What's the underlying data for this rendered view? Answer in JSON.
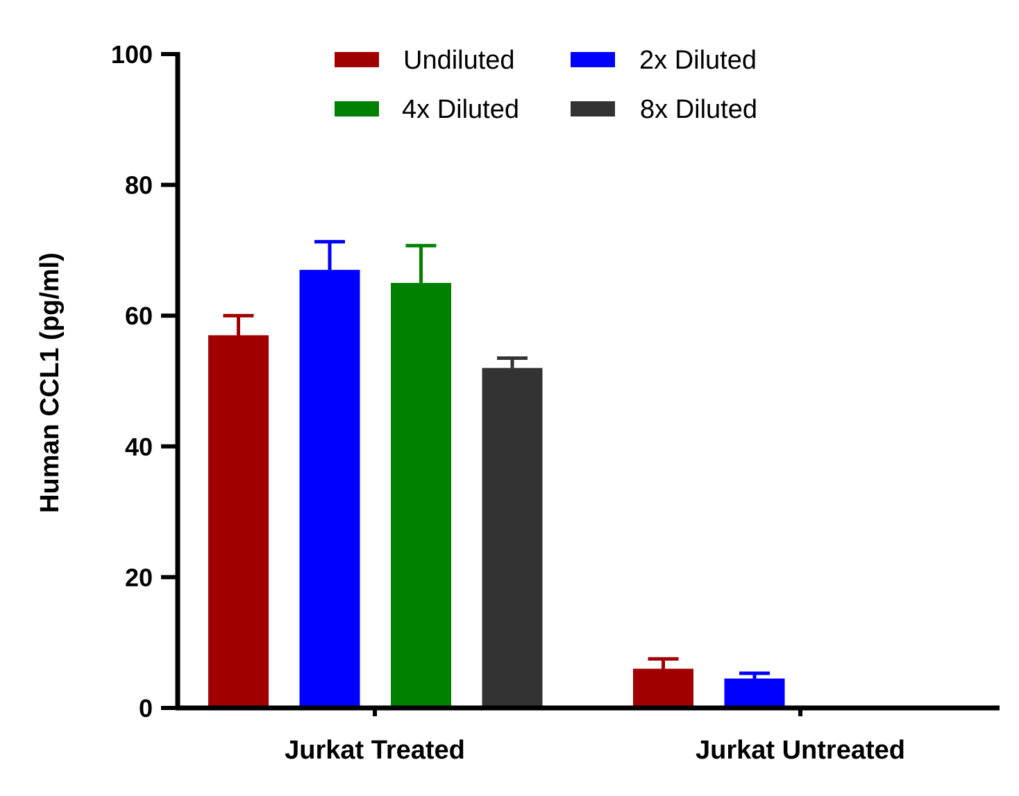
{
  "chart_data": {
    "type": "bar",
    "title": "",
    "xlabel": "",
    "ylabel": "Human CCL1 (pg/ml)",
    "ylim": [
      0,
      100
    ],
    "yticks": [
      0,
      20,
      40,
      60,
      80,
      100
    ],
    "grid": false,
    "legend_position": "top",
    "categories": [
      "Jurkat Treated",
      "Jurkat Untreated"
    ],
    "series": [
      {
        "name": "Undiluted",
        "color": "#a00000",
        "values": [
          57,
          6
        ],
        "errors": [
          3,
          1.5
        ]
      },
      {
        "name": "2x Diluted",
        "color": "#0000ff",
        "values": [
          67,
          4.5
        ],
        "errors": [
          4.3,
          0.8
        ]
      },
      {
        "name": "4x Diluted",
        "color": "#008000",
        "values": [
          65,
          null
        ],
        "errors": [
          5.7,
          null
        ]
      },
      {
        "name": "8x Diluted",
        "color": "#333333",
        "values": [
          52,
          null
        ],
        "errors": [
          1.5,
          null
        ]
      }
    ]
  }
}
